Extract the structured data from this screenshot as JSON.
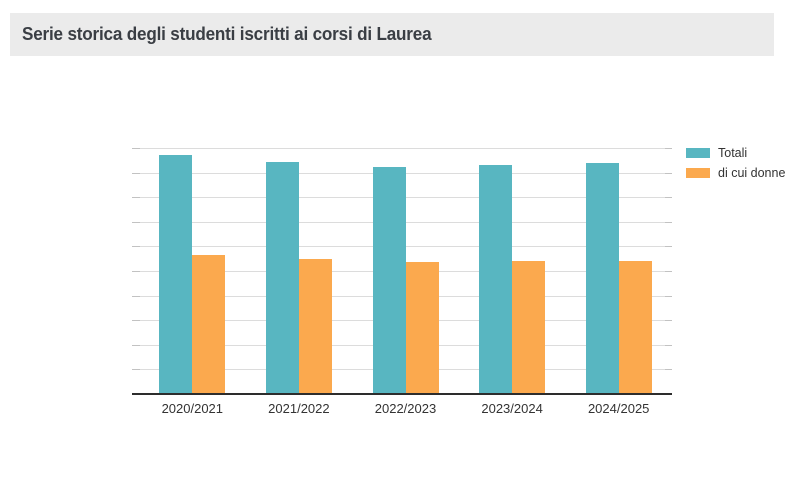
{
  "header": {
    "title": "Serie storica degli studenti iscritti ai corsi di Laurea"
  },
  "colors": {
    "series_totali": "#58b6c1",
    "series_donne": "#fba94e",
    "header_background": "#ebebeb",
    "title_text": "#3a3e44",
    "axis_line": "#2d2d2d",
    "gridline": "#dcdcdc",
    "label_text": "#333333"
  },
  "chart_data": {
    "type": "bar",
    "title": "Serie storica degli studenti iscritti ai corsi di Laurea",
    "categories": [
      "2020/2021",
      "2021/2022",
      "2022/2023",
      "2023/2024",
      "2024/2025"
    ],
    "series": [
      {
        "name": "Totali",
        "color": "#58b6c1",
        "values": [
          19450,
          18880,
          18480,
          18640,
          18760
        ]
      },
      {
        "name": "di cui donne",
        "color": "#fba94e",
        "values": [
          11330,
          10950,
          10760,
          10790,
          10790
        ]
      }
    ],
    "xlabel": "",
    "ylabel": "",
    "ylim": [
      0,
      20000
    ],
    "grid_count": 10,
    "grid_on": true,
    "y_axis_labels_visible": false,
    "legend_position": "top-right",
    "values_estimated_from_gridlines": true
  }
}
